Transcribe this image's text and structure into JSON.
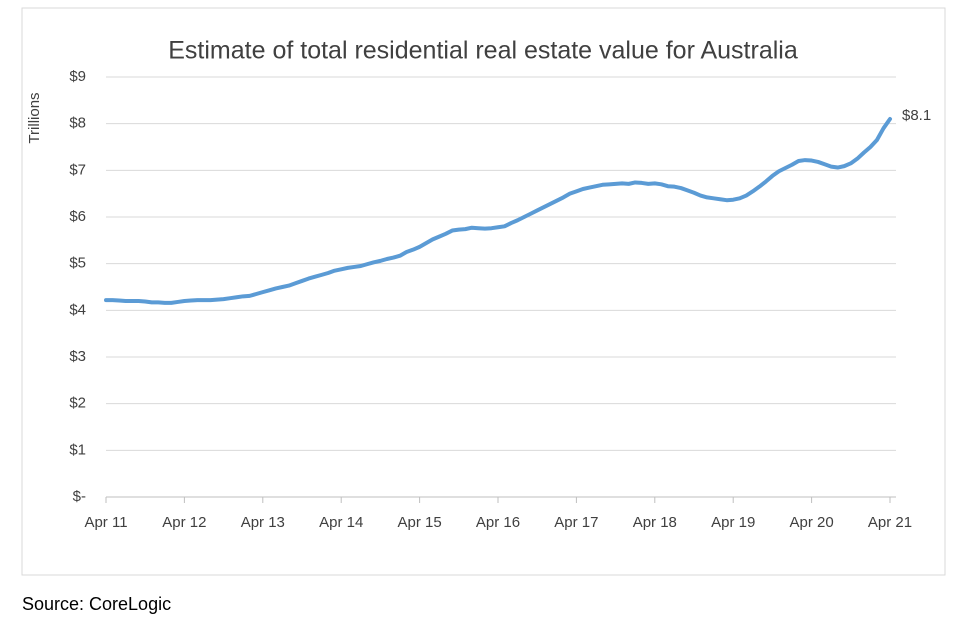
{
  "chart_data": {
    "type": "line",
    "title": "Estimate of total residential real estate value for Australia",
    "y_label": "Trillions",
    "source": "Source: CoreLogic",
    "color": "#5b9bd5",
    "grid": true,
    "categories": [
      "Apr 11",
      null,
      null,
      null,
      null,
      null,
      null,
      null,
      null,
      null,
      null,
      null,
      "Apr 12",
      null,
      null,
      null,
      null,
      null,
      null,
      null,
      null,
      null,
      null,
      null,
      "Apr 13",
      null,
      null,
      null,
      null,
      null,
      null,
      null,
      null,
      null,
      null,
      null,
      "Apr 14",
      null,
      null,
      null,
      null,
      null,
      null,
      null,
      null,
      null,
      null,
      null,
      "Apr 15",
      null,
      null,
      null,
      null,
      null,
      null,
      null,
      null,
      null,
      null,
      null,
      "Apr 16",
      null,
      null,
      null,
      null,
      null,
      null,
      null,
      null,
      null,
      null,
      null,
      "Apr 17",
      null,
      null,
      null,
      null,
      null,
      null,
      null,
      null,
      null,
      null,
      null,
      "Apr 18",
      null,
      null,
      null,
      null,
      null,
      null,
      null,
      null,
      null,
      null,
      null,
      "Apr 19",
      null,
      null,
      null,
      null,
      null,
      null,
      null,
      null,
      null,
      null,
      null,
      "Apr 20",
      null,
      null,
      null,
      null,
      null,
      null,
      null,
      null,
      null,
      null,
      null,
      "Apr 21"
    ],
    "values": [
      4.22,
      4.22,
      4.21,
      4.2,
      4.2,
      4.2,
      4.19,
      4.17,
      4.17,
      4.16,
      4.16,
      4.18,
      4.2,
      4.21,
      4.22,
      4.22,
      4.22,
      4.23,
      4.24,
      4.26,
      4.28,
      4.3,
      4.31,
      4.35,
      4.39,
      4.43,
      4.47,
      4.5,
      4.53,
      4.58,
      4.63,
      4.68,
      4.72,
      4.76,
      4.8,
      4.85,
      4.88,
      4.91,
      4.93,
      4.95,
      4.99,
      5.03,
      5.06,
      5.1,
      5.13,
      5.17,
      5.25,
      5.3,
      5.36,
      5.44,
      5.52,
      5.58,
      5.64,
      5.71,
      5.73,
      5.74,
      5.77,
      5.76,
      5.75,
      5.76,
      5.78,
      5.8,
      5.87,
      5.93,
      6.0,
      6.07,
      6.14,
      6.21,
      6.28,
      6.35,
      6.42,
      6.5,
      6.55,
      6.6,
      6.63,
      6.66,
      6.69,
      6.7,
      6.71,
      6.72,
      6.71,
      6.74,
      6.73,
      6.71,
      6.72,
      6.7,
      6.66,
      6.65,
      6.62,
      6.57,
      6.52,
      6.46,
      6.42,
      6.4,
      6.38,
      6.36,
      6.37,
      6.4,
      6.46,
      6.55,
      6.65,
      6.76,
      6.88,
      6.98,
      7.05,
      7.12,
      7.2,
      7.22,
      7.21,
      7.18,
      7.13,
      7.08,
      7.06,
      7.09,
      7.15,
      7.25,
      7.38,
      7.5,
      7.65,
      7.9,
      8.1
    ],
    "value_labels": [
      null,
      null,
      null,
      null,
      null,
      null,
      null,
      null,
      null,
      null,
      null,
      null,
      null,
      null,
      null,
      null,
      null,
      null,
      null,
      null,
      null,
      null,
      null,
      null,
      null,
      null,
      null,
      null,
      null,
      null,
      null,
      null,
      null,
      null,
      null,
      null,
      null,
      null,
      null,
      null,
      null,
      null,
      null,
      null,
      null,
      null,
      null,
      null,
      null,
      null,
      null,
      null,
      null,
      null,
      null,
      null,
      null,
      null,
      null,
      null,
      null,
      null,
      null,
      null,
      null,
      null,
      null,
      null,
      null,
      null,
      null,
      null,
      null,
      null,
      null,
      null,
      null,
      null,
      null,
      null,
      null,
      null,
      null,
      null,
      null,
      null,
      null,
      null,
      null,
      null,
      null,
      null,
      null,
      null,
      null,
      null,
      null,
      null,
      null,
      null,
      null,
      null,
      null,
      null,
      null,
      null,
      null,
      null,
      null,
      null,
      null,
      null,
      null,
      null,
      null,
      null,
      null,
      null,
      null,
      null,
      "$8.1"
    ],
    "ylim": [
      0,
      9
    ],
    "yticks": [
      {
        "value": 0,
        "label": "$-"
      },
      {
        "value": 1,
        "label": "$1"
      },
      {
        "value": 2,
        "label": "$2"
      },
      {
        "value": 3,
        "label": "$3"
      },
      {
        "value": 4,
        "label": "$4"
      },
      {
        "value": 5,
        "label": "$5"
      },
      {
        "value": 6,
        "label": "$6"
      },
      {
        "value": 7,
        "label": "$7"
      },
      {
        "value": 8,
        "label": "$8"
      },
      {
        "value": 9,
        "label": "$9"
      }
    ]
  }
}
